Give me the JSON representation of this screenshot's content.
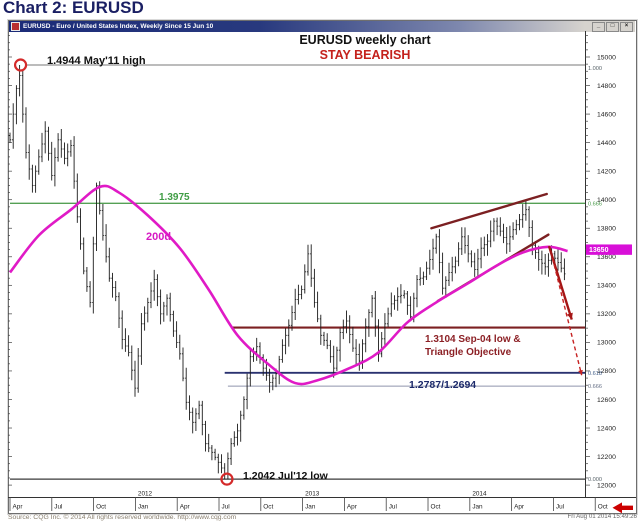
{
  "page": {
    "heading": "Chart 2: EURUSD"
  },
  "window": {
    "title": "EURUSD - Euro / United States Index, Weekly  Since 15 Jun 10",
    "controls": {
      "minimize": "_",
      "maximize": "□",
      "close": "×"
    }
  },
  "chart_data": {
    "type": "bar",
    "subtype": "weekly-ohlc",
    "symbol": "EURUSD",
    "period": "Weekly",
    "title": "EURUSD weekly chart",
    "stance": "STAY BEARISH",
    "stance_color": "#c4211c",
    "fib_pair_label": "1.2787/1.2694",
    "key_points": {
      "high": {
        "price": 1.4944,
        "label": "1.4944 May'11 high"
      },
      "low": {
        "price": 1.2042,
        "label": "1.2042 Jul'12 low"
      },
      "retest_high": {
        "price": 1.3993,
        "when": "May 2014"
      }
    },
    "y_axis": {
      "side": "right",
      "labels": [
        15000,
        14800,
        14600,
        14400,
        14200,
        14000,
        13800,
        13600,
        13400,
        13200,
        13000,
        12800,
        12600,
        12400,
        12200,
        12000
      ],
      "current_price": "13650",
      "current_price_color": "#d80fd8"
    },
    "x_axis": {
      "tick_labels": [
        "Apr",
        "Jul",
        "Oct",
        "Jan",
        "Apr",
        "Jul",
        "Oct",
        "Jan",
        "Apr",
        "Jul",
        "Oct",
        "Jan",
        "Apr",
        "Jul",
        "Oct"
      ],
      "years": [
        {
          "label": "2012",
          "tick_index": 3
        },
        {
          "label": "2013",
          "tick_index": 7
        },
        {
          "label": "2014",
          "tick_index": 11
        }
      ]
    },
    "weeks_total": 174,
    "close_anchors": [
      [
        0,
        14420
      ],
      [
        2,
        14780
      ],
      [
        3,
        14870
      ],
      [
        5,
        14330
      ],
      [
        7,
        14100
      ],
      [
        9,
        14300
      ],
      [
        11,
        14480
      ],
      [
        13,
        14170
      ],
      [
        15,
        14420
      ],
      [
        17,
        14290
      ],
      [
        19,
        14380
      ],
      [
        21,
        13880
      ],
      [
        23,
        13500
      ],
      [
        25,
        13280
      ],
      [
        27,
        14100
      ],
      [
        29,
        13750
      ],
      [
        31,
        13450
      ],
      [
        33,
        13320
      ],
      [
        35,
        13020
      ],
      [
        37,
        12930
      ],
      [
        39,
        12680
      ],
      [
        41,
        13130
      ],
      [
        43,
        13280
      ],
      [
        45,
        13440
      ],
      [
        47,
        13200
      ],
      [
        49,
        13310
      ],
      [
        51,
        13080
      ],
      [
        53,
        12920
      ],
      [
        55,
        12580
      ],
      [
        57,
        12440
      ],
      [
        59,
        12560
      ],
      [
        61,
        12290
      ],
      [
        63,
        12230
      ],
      [
        65,
        12160
      ],
      [
        67,
        12080
      ],
      [
        69,
        12290
      ],
      [
        71,
        12380
      ],
      [
        73,
        12600
      ],
      [
        75,
        12900
      ],
      [
        77,
        12970
      ],
      [
        79,
        12820
      ],
      [
        81,
        12720
      ],
      [
        83,
        12780
      ],
      [
        85,
        12980
      ],
      [
        87,
        13120
      ],
      [
        89,
        13300
      ],
      [
        91,
        13370
      ],
      [
        93,
        13620
      ],
      [
        95,
        13280
      ],
      [
        97,
        13050
      ],
      [
        99,
        12980
      ],
      [
        101,
        12820
      ],
      [
        103,
        13070
      ],
      [
        105,
        13150
      ],
      [
        107,
        12960
      ],
      [
        109,
        12870
      ],
      [
        111,
        13110
      ],
      [
        113,
        13310
      ],
      [
        115,
        12920
      ],
      [
        117,
        13130
      ],
      [
        119,
        13270
      ],
      [
        121,
        13320
      ],
      [
        123,
        13340
      ],
      [
        125,
        13180
      ],
      [
        127,
        13440
      ],
      [
        129,
        13460
      ],
      [
        131,
        13580
      ],
      [
        133,
        13740
      ],
      [
        135,
        13380
      ],
      [
        137,
        13490
      ],
      [
        139,
        13570
      ],
      [
        141,
        13740
      ],
      [
        143,
        13620
      ],
      [
        145,
        13510
      ],
      [
        147,
        13660
      ],
      [
        149,
        13710
      ],
      [
        151,
        13850
      ],
      [
        153,
        13780
      ],
      [
        155,
        13690
      ],
      [
        157,
        13790
      ],
      [
        159,
        13860
      ],
      [
        161,
        13930
      ],
      [
        163,
        13680
      ],
      [
        165,
        13580
      ],
      [
        167,
        13530
      ],
      [
        169,
        13620
      ],
      [
        171,
        13560
      ],
      [
        173,
        13480
      ]
    ],
    "forced_extremes": {
      "high_week": 3,
      "high": 14944,
      "low_week": 67,
      "low": 12042,
      "high2_week": 161,
      "high2": 13993
    },
    "ma": {
      "label": "200d",
      "color": "#e01ac6",
      "anchors": [
        [
          0,
          13490
        ],
        [
          9,
          13750
        ],
        [
          19,
          13930
        ],
        [
          28,
          14090
        ],
        [
          34,
          14050
        ],
        [
          43,
          13890
        ],
        [
          53,
          13660
        ],
        [
          62,
          13370
        ],
        [
          71,
          13050
        ],
        [
          81,
          12840
        ],
        [
          89,
          12715
        ],
        [
          96,
          12735
        ],
        [
          106,
          12820
        ],
        [
          115,
          12930
        ],
        [
          124,
          13140
        ],
        [
          133,
          13280
        ],
        [
          143,
          13415
        ],
        [
          152,
          13540
        ],
        [
          160,
          13630
        ],
        [
          168,
          13670
        ],
        [
          174,
          13640
        ]
      ]
    },
    "levels": [
      {
        "price": 14944,
        "fib": "1.000",
        "fib_color": "#556066",
        "color": "#787878",
        "width": 1,
        "from_week": 5,
        "annotation": "1.4944 May'11 high"
      },
      {
        "price": 13975,
        "fib": "0.666",
        "fib_color": "#4a9a4a",
        "color": "#55a055",
        "width": 1.4,
        "from_week": 0,
        "annotation": "1.3975"
      },
      {
        "price": 13104,
        "fib": "",
        "fib_color": "",
        "color": "#7c2022",
        "width": 2.2,
        "from_week": 69,
        "annotation": "1.3104 Sep-04 low &\nTriangle Objective"
      },
      {
        "price": 12787,
        "fib": "0.618",
        "fib_color": "#44608a",
        "color": "#2a3270",
        "width": 1.8,
        "from_week": 67,
        "annotation": ""
      },
      {
        "price": 12694,
        "fib": "0.666",
        "fib_color": "#667086",
        "color": "#8f94ac",
        "width": 1,
        "from_week": 68,
        "annotation": ""
      },
      {
        "price": 12042,
        "fib": "0.000",
        "fib_color": "#556066",
        "color": "#3a3a3a",
        "width": 1.2,
        "from_week": 0,
        "annotation": "1.2042 Jul'12 low"
      }
    ],
    "trendlines": [
      {
        "name": "wedge-upper",
        "color": "#7c2022",
        "width": 2.4,
        "from": [
          131.5,
          13800
        ],
        "to": [
          167.5,
          14040
        ]
      },
      {
        "name": "wedge-lower",
        "color": "#7c2022",
        "width": 2.4,
        "from": [
          133.5,
          13290
        ],
        "to": [
          168,
          13755
        ]
      }
    ],
    "arrows": [
      {
        "name": "projection-solid",
        "style": "solid",
        "color": "#a51515",
        "width": 2.4,
        "from": [
          168.2,
          13675
        ],
        "to": [
          175.3,
          13160
        ]
      },
      {
        "name": "projection-dashed",
        "style": "dashed",
        "color": "#c62222",
        "width": 1.4,
        "from": [
          169.3,
          13590
        ],
        "to": [
          178.4,
          12770
        ]
      }
    ],
    "circles": [
      {
        "week": 3.3,
        "price": 14944,
        "r": 5.5,
        "color": "#d42a2a"
      },
      {
        "week": 67.7,
        "price": 12042,
        "r": 5.5,
        "color": "#d42a2a"
      }
    ]
  },
  "footer": {
    "source": "Source: CQG Inc. © 2014 All rights reserved worldwide. http://www.cqg.com",
    "timestamp": "Fri Aug 01 2014 15:49:26"
  }
}
